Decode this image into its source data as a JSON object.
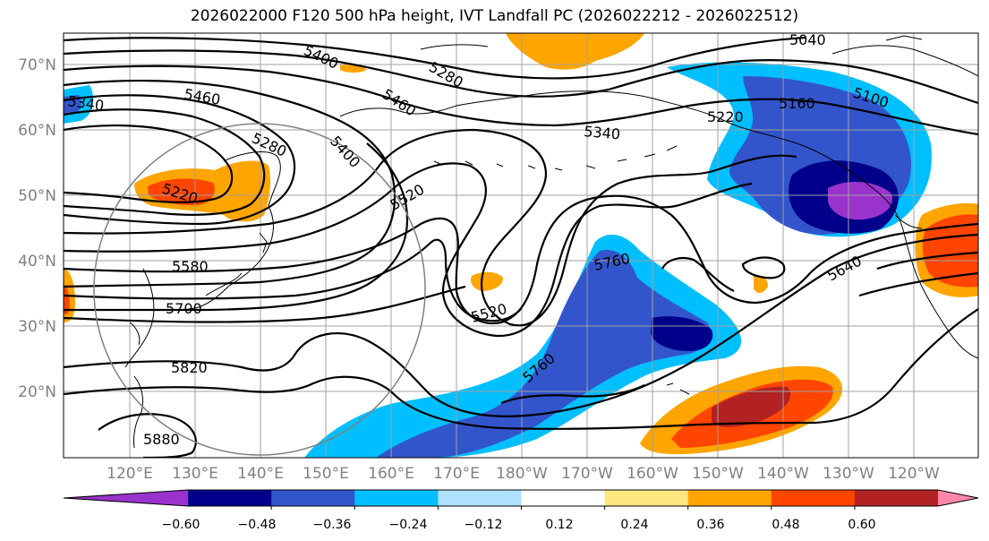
{
  "title": "2026022000 F120 500 hPa height, IVT Landfall PC (2026022212 - 2026022512)",
  "lat_labels": [
    "70°N",
    "60°N",
    "50°N",
    "40°N",
    "30°N",
    "20°N"
  ],
  "lon_labels": [
    "120°E",
    "130°E",
    "140°E",
    "150°E",
    "160°E",
    "170°E",
    "180°W",
    "170°W",
    "160°W",
    "150°W",
    "140°W",
    "130°W",
    "120°W"
  ],
  "contour_labels": [
    "5040",
    "5100",
    "5160",
    "5220",
    "5280",
    "5340",
    "5400",
    "5460",
    "5520",
    "5580",
    "5640",
    "5700",
    "5760",
    "5820",
    "5880",
    "5340",
    "5400",
    "5460",
    "5280",
    "5220",
    "5460",
    "5400",
    "5520",
    "5760",
    "5760"
  ],
  "colorbar": {
    "colors": [
      "#9933cc",
      "#00008b",
      "#3355cc",
      "#00bfff",
      "#b0e0ff",
      "#ffffff",
      "#ffe680",
      "#ffa500",
      "#ff4500",
      "#b22222",
      "#ff88aa"
    ],
    "tick_labels": [
      "−0.60",
      "−0.48",
      "−0.36",
      "−0.24",
      "−0.12",
      "0.12",
      "0.24",
      "0.36",
      "0.48",
      "0.60"
    ]
  }
}
